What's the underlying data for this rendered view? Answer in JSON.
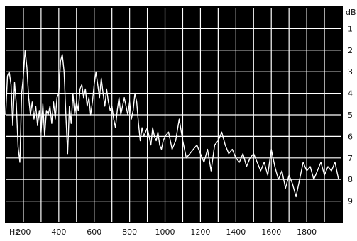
{
  "chart_data": {
    "type": "line",
    "title": "",
    "xlabel": "Hz",
    "ylabel": "dB",
    "xlim": [
      100,
      2000
    ],
    "ylim": [
      -10,
      0
    ],
    "x_ticks": [
      200,
      400,
      600,
      800,
      1000,
      1200,
      1400,
      1600,
      1800
    ],
    "x_tick_labels": [
      "200",
      "400",
      "600",
      "800",
      "1000",
      "1200",
      "1400",
      "1600",
      "1800"
    ],
    "y_ticks": [
      -1,
      -2,
      -3,
      -4,
      -5,
      -6,
      -7,
      -8,
      -9
    ],
    "y_tick_labels": [
      "1",
      "2",
      "3",
      "4",
      "5",
      "6",
      "7",
      "8",
      "9"
    ],
    "grid": true,
    "colors": {
      "plot_background": "#000000",
      "grid": "#ffffff",
      "line": "#ffffff",
      "page_background": "#ffffff"
    },
    "series": [
      {
        "x": [
          100,
          110,
          120,
          130,
          140,
          150,
          160,
          170,
          180,
          190,
          200,
          210,
          220,
          230,
          240,
          250,
          260,
          270,
          280,
          290,
          300,
          310,
          320,
          330,
          340,
          350,
          360,
          370,
          380,
          390,
          400,
          410,
          420,
          430,
          440,
          450,
          460,
          470,
          480,
          490,
          500,
          510,
          520,
          530,
          540,
          550,
          560,
          570,
          580,
          590,
          600,
          610,
          620,
          630,
          640,
          650,
          660,
          670,
          680,
          690,
          700,
          710,
          720,
          730,
          740,
          750,
          760,
          770,
          780,
          790,
          800,
          810,
          820,
          830,
          840,
          850,
          860,
          870,
          880,
          890,
          900,
          910,
          920,
          930,
          940,
          950,
          960,
          970,
          980,
          990,
          1000,
          1020,
          1040,
          1060,
          1080,
          1100,
          1120,
          1140,
          1160,
          1180,
          1200,
          1220,
          1240,
          1260,
          1280,
          1300,
          1320,
          1340,
          1360,
          1380,
          1400,
          1420,
          1440,
          1460,
          1480,
          1500,
          1520,
          1540,
          1560,
          1580,
          1600,
          1620,
          1640,
          1660,
          1680,
          1700,
          1720,
          1740,
          1760,
          1780,
          1800,
          1820,
          1840,
          1860,
          1880,
          1900,
          1920,
          1940,
          1960,
          1980
        ],
        "y": [
          -5.0,
          -3.2,
          -3.0,
          -3.6,
          -5.5,
          -3.5,
          -4.5,
          -6.5,
          -7.2,
          -4.0,
          -3.2,
          -2.0,
          -2.8,
          -4.2,
          -5.0,
          -4.4,
          -5.2,
          -4.6,
          -5.5,
          -4.8,
          -5.8,
          -4.5,
          -6.0,
          -4.8,
          -5.0,
          -4.6,
          -5.4,
          -4.4,
          -5.2,
          -4.2,
          -4.0,
          -2.5,
          -2.2,
          -3.0,
          -5.0,
          -6.8,
          -4.6,
          -5.4,
          -4.0,
          -5.0,
          -4.4,
          -4.8,
          -3.8,
          -3.6,
          -4.2,
          -3.8,
          -4.6,
          -4.2,
          -5.0,
          -4.4,
          -3.6,
          -3.0,
          -3.6,
          -4.2,
          -3.3,
          -4.0,
          -4.6,
          -3.8,
          -4.4,
          -4.8,
          -4.6,
          -5.2,
          -5.6,
          -4.8,
          -4.2,
          -5.0,
          -4.6,
          -4.2,
          -4.6,
          -5.0,
          -4.4,
          -5.2,
          -4.8,
          -4.0,
          -4.4,
          -5.4,
          -6.2,
          -5.6,
          -6.0,
          -5.8,
          -5.6,
          -6.0,
          -6.4,
          -5.6,
          -6.0,
          -6.2,
          -5.8,
          -6.4,
          -6.6,
          -6.2,
          -6.0,
          -5.8,
          -6.6,
          -6.2,
          -5.2,
          -6.2,
          -7.0,
          -6.8,
          -6.6,
          -6.4,
          -6.8,
          -7.2,
          -6.6,
          -7.6,
          -6.4,
          -6.2,
          -5.8,
          -6.4,
          -6.8,
          -6.6,
          -7.0,
          -7.2,
          -6.8,
          -7.4,
          -7.0,
          -6.8,
          -7.2,
          -7.6,
          -7.2,
          -7.8,
          -6.6,
          -7.4,
          -8.0,
          -7.6,
          -8.4,
          -7.8,
          -8.2,
          -8.8,
          -8.0,
          -7.2,
          -7.6,
          -7.4,
          -8.0,
          -7.6,
          -7.2,
          -7.8,
          -7.4,
          -7.6,
          -7.2,
          -8.0
        ]
      }
    ]
  }
}
